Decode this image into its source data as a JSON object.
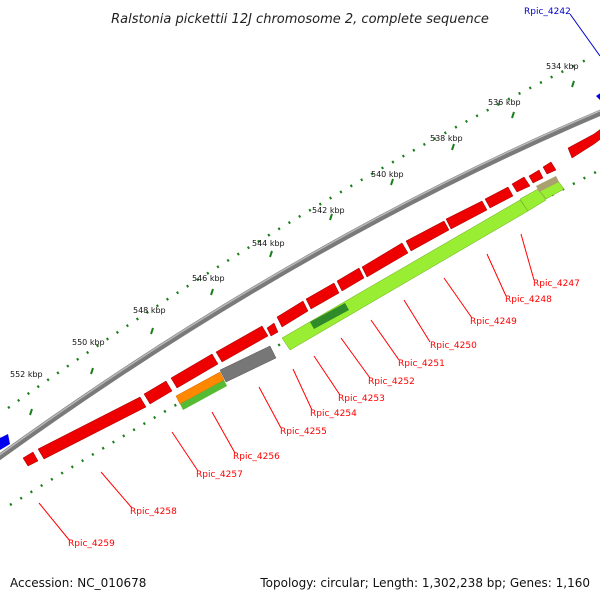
{
  "title": "Ralstonia pickettii 12J chromosome 2, complete sequence",
  "footer": {
    "accession": "Accession: NC_010678",
    "summary": "Topology: circular; Length: 1,302,238 bp; Genes: 1,160"
  },
  "colors": {
    "gene_fwd": "#ff0000",
    "gene_rev": "#ff0000",
    "backbone": "#888888",
    "ticks": "#1a7f1a",
    "label_red": "#ff0000",
    "label_blue": "#0000cc",
    "hit_lime": "#99ee33",
    "hit_green": "#44aa22",
    "hit_orange": "#ff8800",
    "hit_gray": "#777777"
  },
  "ticks": [
    "534 kbp",
    "536 kbp",
    "538 kbp",
    "540 kbp",
    "542 kbp",
    "544 kbp",
    "546 kbp",
    "548 kbp",
    "550 kbp",
    "552 kbp"
  ],
  "gene_labels": [
    {
      "name": "Rpic_4242",
      "color": "blue"
    },
    {
      "name": "Rpic_4247",
      "color": "red"
    },
    {
      "name": "Rpic_4248",
      "color": "red"
    },
    {
      "name": "Rpic_4249",
      "color": "red"
    },
    {
      "name": "Rpic_4250",
      "color": "red"
    },
    {
      "name": "Rpic_4251",
      "color": "red"
    },
    {
      "name": "Rpic_4252",
      "color": "red"
    },
    {
      "name": "Rpic_4253",
      "color": "red"
    },
    {
      "name": "Rpic_4254",
      "color": "red"
    },
    {
      "name": "Rpic_4255",
      "color": "red"
    },
    {
      "name": "Rpic_4256",
      "color": "red"
    },
    {
      "name": "Rpic_4257",
      "color": "red"
    },
    {
      "name": "Rpic_4258",
      "color": "red"
    },
    {
      "name": "Rpic_4259",
      "color": "red"
    }
  ]
}
